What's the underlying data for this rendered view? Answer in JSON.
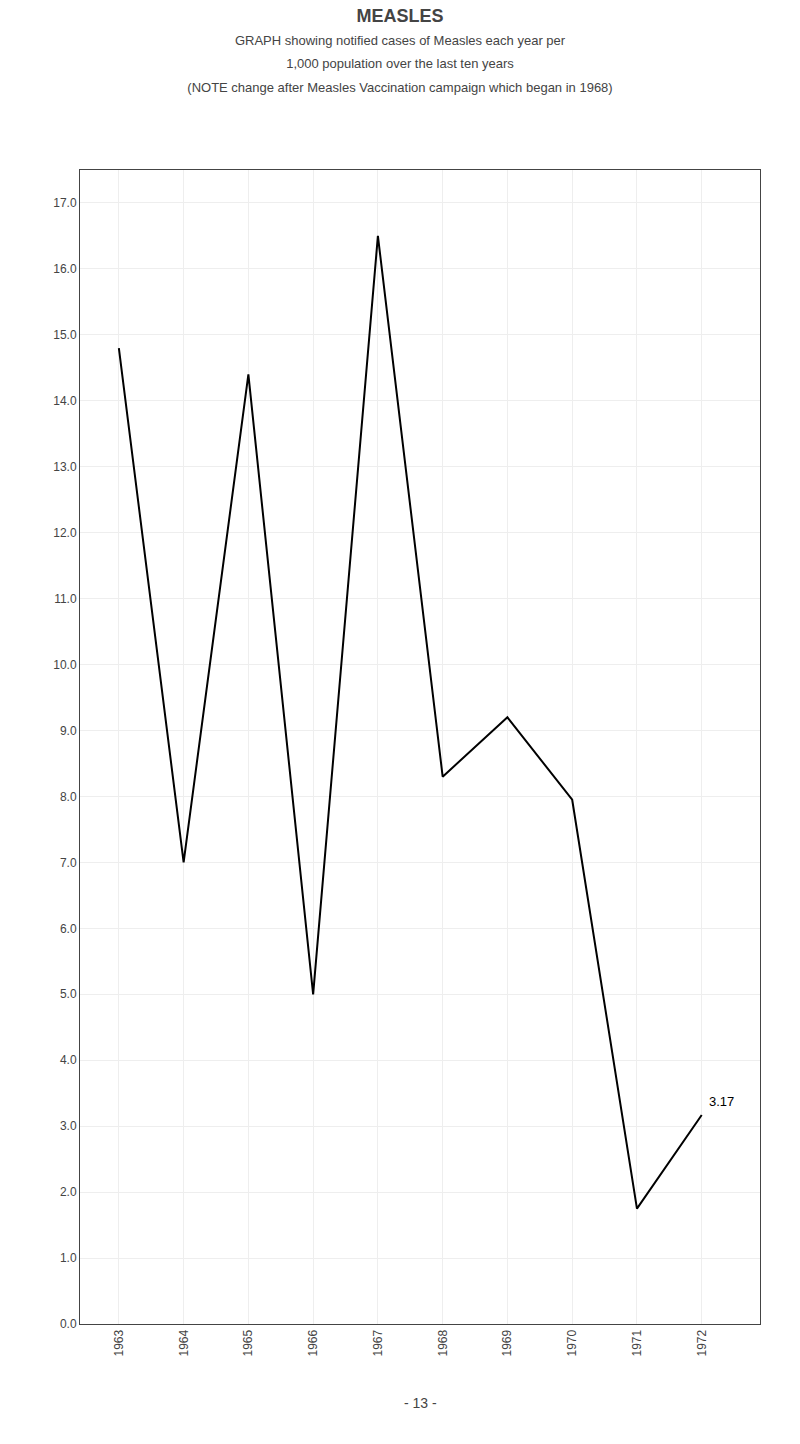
{
  "chart_data": {
    "type": "line",
    "title": "MEASLES",
    "subtitle": [
      "GRAPH showing notified cases of Measles each year per",
      "1,000 population over the last ten years",
      "(NOTE change after Measles Vaccination campaign which began in 1968)"
    ],
    "caption": "- 13 -",
    "x": [
      1963,
      1964,
      1965,
      1966,
      1967,
      1968,
      1969,
      1970,
      1971,
      1972
    ],
    "values": [
      14.8,
      7.0,
      14.4,
      5.0,
      16.5,
      8.3,
      9.2,
      7.95,
      1.75,
      3.17
    ],
    "color": "#000000",
    "annotations": [
      {
        "text": "3.17",
        "x": 1972,
        "y": 3.17
      }
    ],
    "xlim": [
      1962.4,
      1972.9
    ],
    "xticks": [
      1963,
      1964,
      1965,
      1966,
      1967,
      1968,
      1969,
      1970,
      1971,
      1972
    ],
    "ylim": [
      0.0,
      17.5
    ],
    "yticks": [
      {
        "value": 0,
        "label": "0.0"
      },
      {
        "value": 1,
        "label": "1.0"
      },
      {
        "value": 2,
        "label": "2.0"
      },
      {
        "value": 3,
        "label": "3.0"
      },
      {
        "value": 4,
        "label": "4.0"
      },
      {
        "value": 5,
        "label": "5.0"
      },
      {
        "value": 6,
        "label": "6.0"
      },
      {
        "value": 7,
        "label": "7.0"
      },
      {
        "value": 8,
        "label": "8.0"
      },
      {
        "value": 9,
        "label": "9.0"
      },
      {
        "value": 10,
        "label": "10.0"
      },
      {
        "value": 11,
        "label": "11.0"
      },
      {
        "value": 12,
        "label": "12.0"
      },
      {
        "value": 13,
        "label": "13.0"
      },
      {
        "value": 14,
        "label": "14.0"
      },
      {
        "value": 15,
        "label": "15.0"
      },
      {
        "value": 16,
        "label": "16.0"
      },
      {
        "value": 17,
        "label": "17.0"
      }
    ],
    "grid": true
  }
}
